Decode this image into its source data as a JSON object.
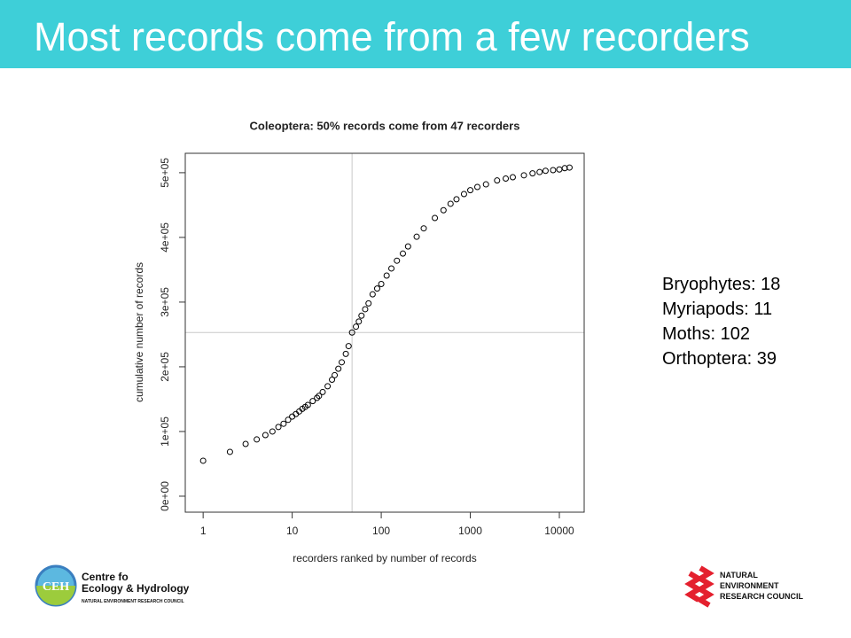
{
  "slide": {
    "title": "Most records come from a few recorders",
    "notes": [
      "Bryophytes: 18",
      "Myriapods: 11",
      "Moths: 102",
      "Orthoptera: 39"
    ],
    "ceh_logo": {
      "mark": "CEH",
      "line1": "Centre fo",
      "line2": "Ecology & Hydrology",
      "line3": "NATURAL ENVIRONMENT RESEARCH COUNCIL"
    },
    "nerc_logo": {
      "line1": "NATURAL",
      "line2": "ENVIRONMENT",
      "line3": "RESEARCH COUNCIL"
    }
  },
  "chart_data": {
    "type": "scatter",
    "title": "Coleoptera: 50% records come from 47 recorders",
    "xlabel": "recorders ranked by number of records",
    "ylabel": "cumulative number of records",
    "xscale": "log",
    "x": [
      1,
      2,
      3,
      4,
      5,
      6,
      7,
      8,
      9,
      10,
      11,
      12,
      13,
      14,
      15,
      17,
      19,
      20,
      22,
      25,
      28,
      30,
      33,
      36,
      40,
      43,
      47,
      52,
      56,
      60,
      66,
      72,
      80,
      90,
      100,
      115,
      130,
      150,
      175,
      200,
      250,
      300,
      400,
      500,
      600,
      700,
      850,
      1000,
      1200,
      1500,
      2000,
      2500,
      3000,
      4000,
      5000,
      6000,
      7000,
      8500,
      10000,
      11500,
      13000
    ],
    "values": [
      54800,
      68500,
      80800,
      87700,
      94500,
      100000,
      107000,
      112000,
      118000,
      123000,
      127000,
      131000,
      135000,
      138000,
      141000,
      147000,
      152000,
      155000,
      161000,
      170000,
      180000,
      187000,
      197000,
      207000,
      220000,
      232000,
      253000,
      262000,
      270000,
      279000,
      289000,
      298000,
      312000,
      321000,
      328000,
      341000,
      352000,
      364000,
      375000,
      386000,
      401000,
      414000,
      430000,
      442000,
      452000,
      459000,
      467000,
      473000,
      478000,
      482000,
      488000,
      491000,
      493000,
      496000,
      499000,
      501000,
      503000,
      504000,
      505000,
      507000,
      508000
    ],
    "color": "#000000",
    "vline": 47,
    "hline": 253000,
    "refline_color": "#c8c8c8",
    "xlim": [
      0.63,
      19000
    ],
    "ylim": [
      -24700,
      530000
    ],
    "xticks": [
      1,
      10,
      100,
      1000,
      10000
    ],
    "yticks": [
      {
        "value": 0,
        "label": "0e+00"
      },
      {
        "value": 100000,
        "label": "1e+05"
      },
      {
        "value": 200000,
        "label": "2e+05"
      },
      {
        "value": 300000,
        "label": "3e+05"
      },
      {
        "value": 400000,
        "label": "4e+05"
      },
      {
        "value": 500000,
        "label": "5e+05"
      }
    ]
  }
}
